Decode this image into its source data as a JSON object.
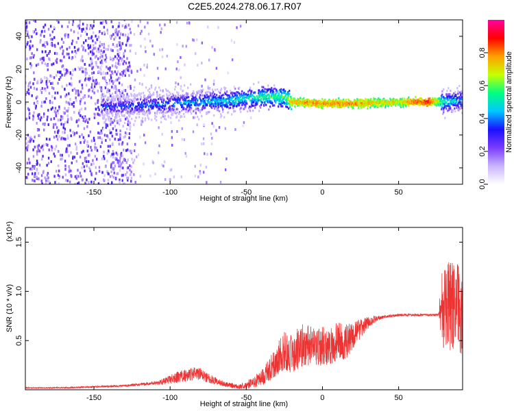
{
  "title": "C2E5.2024.278.06.17.R07",
  "colors": {
    "trace": "#ee3333",
    "frame": "#000000",
    "colormap": [
      "#ffffff",
      "#c9b4ff",
      "#7a3cff",
      "#1a10ff",
      "#00c8ff",
      "#00ff80",
      "#c8ff00",
      "#ffa000",
      "#ff0000",
      "#ff00a0"
    ]
  },
  "chart_data": [
    {
      "type": "heatmap",
      "title": "C2E5.2024.278.06.17.R07",
      "xlabel": "Height of straight line (km)",
      "ylabel": "Frequency (Hz)",
      "xlim": [
        -195,
        92
      ],
      "ylim": [
        -50,
        50
      ],
      "x_ticks": [
        -150,
        -100,
        -50,
        0,
        50
      ],
      "x_tick_labels": [
        "-150",
        "-100",
        "-50",
        "0",
        "50"
      ],
      "y_ticks": [
        -40,
        -20,
        0,
        20,
        40
      ],
      "y_tick_labels": [
        "-40",
        "-20",
        "0",
        "20",
        "40"
      ],
      "colorbar": {
        "label": "Normalized spectral amplitude",
        "range": [
          0,
          1
        ],
        "ticks": [
          0,
          0.2,
          0.4,
          0.6,
          0.8
        ],
        "tick_labels": [
          "0.0",
          "0.2",
          "0.4",
          "0.6",
          "0.8"
        ]
      },
      "ridge": {
        "x": [
          -140,
          -120,
          -100,
          -80,
          -60,
          -40,
          -25,
          -20,
          0,
          20,
          50,
          70,
          80,
          92
        ],
        "y": [
          -3,
          -2,
          -1,
          0,
          1,
          3,
          3,
          0,
          -1,
          -1,
          0,
          0,
          0,
          1
        ],
        "amplitude": [
          0.35,
          0.38,
          0.42,
          0.45,
          0.5,
          0.55,
          0.6,
          0.75,
          0.8,
          0.78,
          0.7,
          0.9,
          0.5,
          0.45
        ]
      },
      "grid": false
    },
    {
      "type": "line",
      "xlabel": "Height of straight line (km)",
      "ylabel": "SNR (10 * v/v)",
      "y_scale_label": "(x10⁴)",
      "y_multiplier": 10000,
      "xlim": [
        -195,
        92
      ],
      "ylim": [
        0,
        1.65
      ],
      "x_ticks": [
        -150,
        -100,
        -50,
        0,
        50
      ],
      "x_tick_labels": [
        "-150",
        "-100",
        "-50",
        "0",
        "50"
      ],
      "y_ticks": [
        0.5,
        1.0,
        1.5
      ],
      "y_tick_labels": [
        "0.5",
        "1.0",
        "1.5"
      ],
      "series": [
        {
          "x": [
            -195,
            -170,
            -150,
            -130,
            -115,
            -105,
            -95,
            -85,
            -80,
            -75,
            -65,
            -55,
            -50,
            -45,
            -40,
            -35,
            -30,
            -25,
            -20,
            -15,
            -10,
            -5,
            0,
            5,
            10,
            15,
            20,
            25,
            30,
            35,
            40,
            50,
            60,
            70,
            76,
            78,
            80,
            85,
            90,
            92
          ],
          "values": [
            0.02,
            0.02,
            0.03,
            0.04,
            0.06,
            0.08,
            0.13,
            0.16,
            0.16,
            0.12,
            0.06,
            0.03,
            0.05,
            0.08,
            0.12,
            0.2,
            0.3,
            0.4,
            0.35,
            0.45,
            0.45,
            0.42,
            0.45,
            0.42,
            0.5,
            0.48,
            0.55,
            0.62,
            0.68,
            0.72,
            0.74,
            0.76,
            0.76,
            0.76,
            0.76,
            0.8,
            0.85,
            0.85,
            0.82,
            0.8
          ],
          "noise": [
            0.005,
            0.006,
            0.008,
            0.01,
            0.015,
            0.03,
            0.06,
            0.07,
            0.06,
            0.05,
            0.03,
            0.02,
            0.04,
            0.06,
            0.08,
            0.12,
            0.16,
            0.2,
            0.2,
            0.22,
            0.22,
            0.2,
            0.2,
            0.2,
            0.2,
            0.18,
            0.14,
            0.1,
            0.06,
            0.03,
            0.015,
            0.012,
            0.012,
            0.012,
            0.012,
            0.35,
            0.45,
            0.45,
            0.45,
            0.45
          ]
        }
      ],
      "grid": false
    }
  ]
}
